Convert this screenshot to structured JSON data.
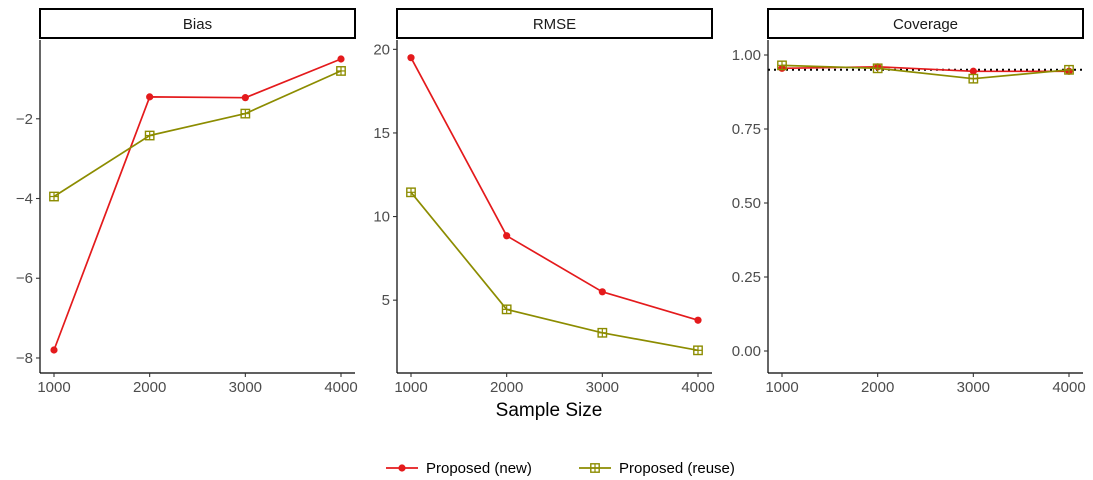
{
  "chart_data": {
    "type": "line",
    "layout": "faceted-1x3",
    "xlabel": "Sample Size",
    "legend": {
      "position": "bottom",
      "entries": [
        "Proposed (new)",
        "Proposed (reuse)"
      ]
    },
    "colors": {
      "Proposed (new)": "#e41a1c",
      "Proposed (reuse)": "#8c8c00"
    },
    "markers": {
      "Proposed (new)": "filled-circle",
      "Proposed (reuse)": "crossed-square"
    },
    "grid": false,
    "panels": [
      {
        "title": "Bias",
        "x": [
          1000,
          2000,
          3000,
          4000
        ],
        "xticks": [
          "1000",
          "2000",
          "3000",
          "4000"
        ],
        "xlim": [
          1000,
          4000
        ],
        "yticks": [
          -8,
          -6,
          -4,
          -2
        ],
        "ytick_labels": [
          "−8",
          "−6",
          "−4",
          "−2"
        ],
        "ylim": [
          -7.85,
          -0.4
        ],
        "series": [
          {
            "name": "Proposed (new)",
            "values": [
              -7.8,
              -1.45,
              -1.47,
              -0.5
            ]
          },
          {
            "name": "Proposed (reuse)",
            "values": [
              -3.95,
              -2.42,
              -1.87,
              -0.8
            ]
          }
        ]
      },
      {
        "title": "RMSE",
        "x": [
          1000,
          2000,
          3000,
          4000
        ],
        "xticks": [
          "1000",
          "2000",
          "3000",
          "4000"
        ],
        "xlim": [
          1000,
          4000
        ],
        "yticks": [
          5,
          10,
          15,
          20
        ],
        "ytick_labels": [
          "5",
          "10",
          "15",
          "20"
        ],
        "ylim": [
          1.9,
          20.2
        ],
        "series": [
          {
            "name": "Proposed (new)",
            "values": [
              19.5,
              8.85,
              5.5,
              3.8
            ]
          },
          {
            "name": "Proposed (reuse)",
            "values": [
              11.45,
              4.45,
              3.05,
              2.0
            ]
          }
        ]
      },
      {
        "title": "Coverage",
        "x": [
          1000,
          2000,
          3000,
          4000
        ],
        "xticks": [
          "1000",
          "2000",
          "3000",
          "4000"
        ],
        "xlim": [
          1000,
          4000
        ],
        "yticks": [
          0,
          0.25,
          0.5,
          0.75,
          1.0
        ],
        "ytick_labels": [
          "0.00",
          "0.25",
          "0.50",
          "0.75",
          "1.00"
        ],
        "ylim": [
          0,
          1.0
        ],
        "reference_line": {
          "y": 0.95,
          "style": "dotted"
        },
        "series": [
          {
            "name": "Proposed (new)",
            "values": [
              0.955,
              0.96,
              0.945,
              0.945
            ]
          },
          {
            "name": "Proposed (reuse)",
            "values": [
              0.965,
              0.955,
              0.92,
              0.95
            ]
          }
        ]
      }
    ]
  }
}
